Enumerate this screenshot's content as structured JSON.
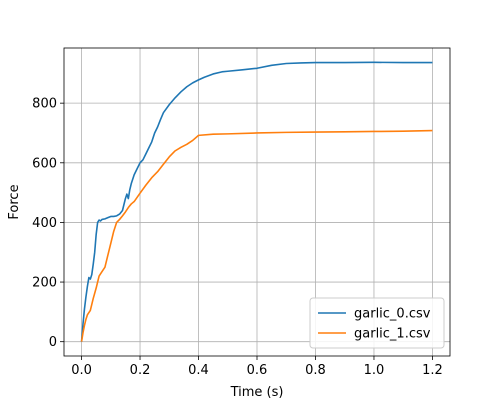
{
  "chart_data": {
    "type": "line",
    "title": "",
    "xlabel": "Time (s)",
    "ylabel": "Force",
    "xlim": [
      -0.06,
      1.26
    ],
    "ylim": [
      -48,
      985
    ],
    "xticks": [
      0.0,
      0.2,
      0.4,
      0.6,
      0.8,
      1.0,
      1.2
    ],
    "xtick_labels": [
      "0.0",
      "0.2",
      "0.4",
      "0.6",
      "0.8",
      "1.0",
      "1.2"
    ],
    "yticks": [
      0,
      200,
      400,
      600,
      800
    ],
    "ytick_labels": [
      "0",
      "200",
      "400",
      "600",
      "800"
    ],
    "grid": true,
    "legend_position": "lower-right",
    "series": [
      {
        "name": "garlic_0.csv",
        "color": "#1f77b4",
        "x": [
          0.0,
          0.005,
          0.01,
          0.015,
          0.02,
          0.025,
          0.03,
          0.035,
          0.04,
          0.045,
          0.05,
          0.055,
          0.06,
          0.065,
          0.07,
          0.08,
          0.09,
          0.1,
          0.11,
          0.12,
          0.13,
          0.14,
          0.15,
          0.155,
          0.16,
          0.165,
          0.17,
          0.18,
          0.19,
          0.2,
          0.21,
          0.22,
          0.23,
          0.24,
          0.25,
          0.26,
          0.27,
          0.28,
          0.3,
          0.32,
          0.34,
          0.36,
          0.38,
          0.4,
          0.42,
          0.45,
          0.48,
          0.5,
          0.55,
          0.6,
          0.65,
          0.7,
          0.75,
          0.8,
          0.9,
          1.0,
          1.1,
          1.2
        ],
        "y": [
          0,
          60,
          110,
          150,
          185,
          215,
          210,
          225,
          260,
          300,
          360,
          400,
          408,
          405,
          410,
          412,
          416,
          420,
          420,
          422,
          428,
          440,
          480,
          495,
          480,
          510,
          530,
          560,
          580,
          600,
          610,
          630,
          650,
          670,
          700,
          720,
          745,
          768,
          795,
          818,
          838,
          855,
          868,
          878,
          887,
          898,
          905,
          907,
          912,
          917,
          927,
          933,
          935,
          936,
          936,
          937,
          936,
          936
        ]
      },
      {
        "name": "garlic_1.csv",
        "color": "#ff7f0e",
        "x": [
          0.0,
          0.005,
          0.01,
          0.015,
          0.02,
          0.03,
          0.04,
          0.05,
          0.06,
          0.07,
          0.08,
          0.09,
          0.1,
          0.11,
          0.12,
          0.13,
          0.14,
          0.15,
          0.16,
          0.17,
          0.18,
          0.2,
          0.22,
          0.24,
          0.26,
          0.28,
          0.3,
          0.32,
          0.34,
          0.36,
          0.38,
          0.4,
          0.45,
          0.5,
          0.6,
          0.7,
          0.8,
          0.9,
          1.0,
          1.1,
          1.2
        ],
        "y": [
          0,
          30,
          55,
          75,
          90,
          105,
          145,
          180,
          220,
          235,
          250,
          290,
          330,
          370,
          400,
          410,
          422,
          435,
          450,
          462,
          470,
          498,
          525,
          550,
          570,
          595,
          620,
          640,
          652,
          662,
          675,
          692,
          696,
          697,
          700,
          702,
          703,
          704,
          705,
          706,
          708
        ]
      }
    ]
  }
}
